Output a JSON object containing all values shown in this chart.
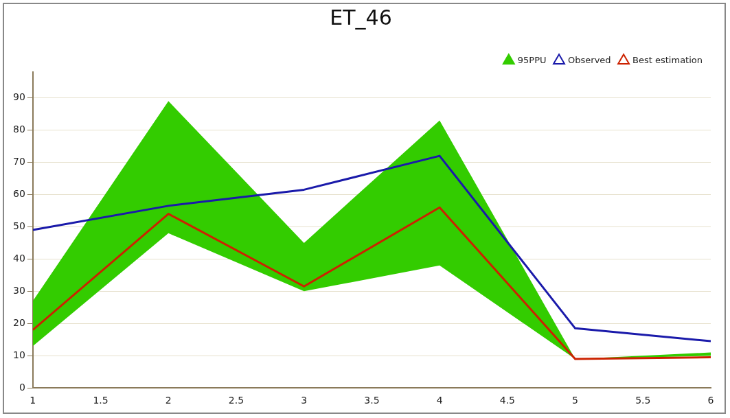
{
  "chart_data": {
    "type": "line",
    "title": "ET_46",
    "x": [
      1,
      2,
      3,
      4,
      5,
      6
    ],
    "series": [
      {
        "name": "95PPU",
        "type": "area",
        "color": "#33cc00",
        "values": [
          null,
          null,
          null,
          null,
          null,
          null
        ],
        "lower": [
          13,
          48,
          30,
          38,
          9,
          10
        ],
        "upper": [
          27,
          89,
          45,
          83,
          9,
          11
        ]
      },
      {
        "name": "Observed",
        "type": "line",
        "color": "#1a1aaa",
        "values": [
          49,
          56.5,
          61.5,
          72,
          18.5,
          14.5
        ]
      },
      {
        "name": "Best estimation",
        "type": "line",
        "color": "#cc2200",
        "values": [
          18,
          54,
          31.5,
          56,
          9,
          9.5
        ]
      }
    ],
    "xlim": [
      1,
      6
    ],
    "xticks": [
      1,
      1.5,
      2,
      2.5,
      3,
      3.5,
      4,
      4.5,
      5,
      5.5,
      6
    ],
    "ylim": [
      0,
      98
    ],
    "yticks": [
      0,
      10,
      20,
      30,
      40,
      50,
      60,
      70,
      80,
      90
    ],
    "grid": "y",
    "legend": "top right",
    "marker": "none",
    "line_style": "solid"
  }
}
